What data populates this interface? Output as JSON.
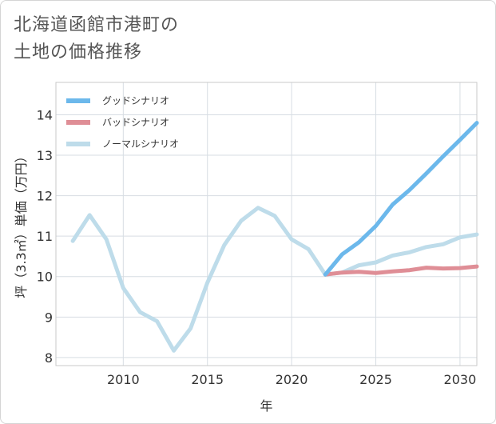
{
  "title": "北海道函館市港町の\n土地の価格推移",
  "chart_data": {
    "type": "line",
    "xlabel": "年",
    "ylabel": "坪（3.3㎡）単価（万円）",
    "xlim": [
      2006,
      2031
    ],
    "ylim": [
      7.8,
      14.8
    ],
    "x_ticks": [
      2010,
      2015,
      2020,
      2025,
      2030
    ],
    "y_ticks": [
      8,
      9,
      10,
      11,
      12,
      13,
      14
    ],
    "grid": true,
    "legend_position": "top-left",
    "series": [
      {
        "name": "グッドシナリオ",
        "color": "#6cb8eb",
        "x": [
          2022,
          2023,
          2024,
          2025,
          2026,
          2027,
          2028,
          2029,
          2030,
          2031
        ],
        "values": [
          10.05,
          10.55,
          10.85,
          11.25,
          11.78,
          12.14,
          12.55,
          12.97,
          13.38,
          13.8
        ]
      },
      {
        "name": "バッドシナリオ",
        "color": "#df8e96",
        "x": [
          2022,
          2023,
          2024,
          2025,
          2026,
          2027,
          2028,
          2029,
          2030,
          2031
        ],
        "values": [
          10.05,
          10.1,
          10.12,
          10.09,
          10.13,
          10.16,
          10.22,
          10.2,
          10.21,
          10.25
        ]
      },
      {
        "name": "ノーマルシナリオ",
        "color": "#bedcea",
        "x": [
          2007,
          2008,
          2009,
          2010,
          2011,
          2012,
          2013,
          2014,
          2015,
          2016,
          2017,
          2018,
          2019,
          2020,
          2021,
          2022,
          2023,
          2024,
          2025,
          2026,
          2027,
          2028,
          2029,
          2030,
          2031
        ],
        "values": [
          10.88,
          11.52,
          10.92,
          9.72,
          9.12,
          8.9,
          8.17,
          8.72,
          9.85,
          10.78,
          11.38,
          11.7,
          11.5,
          10.92,
          10.68,
          10.05,
          10.1,
          10.28,
          10.35,
          10.52,
          10.6,
          10.73,
          10.8,
          10.97,
          11.04
        ]
      }
    ]
  }
}
